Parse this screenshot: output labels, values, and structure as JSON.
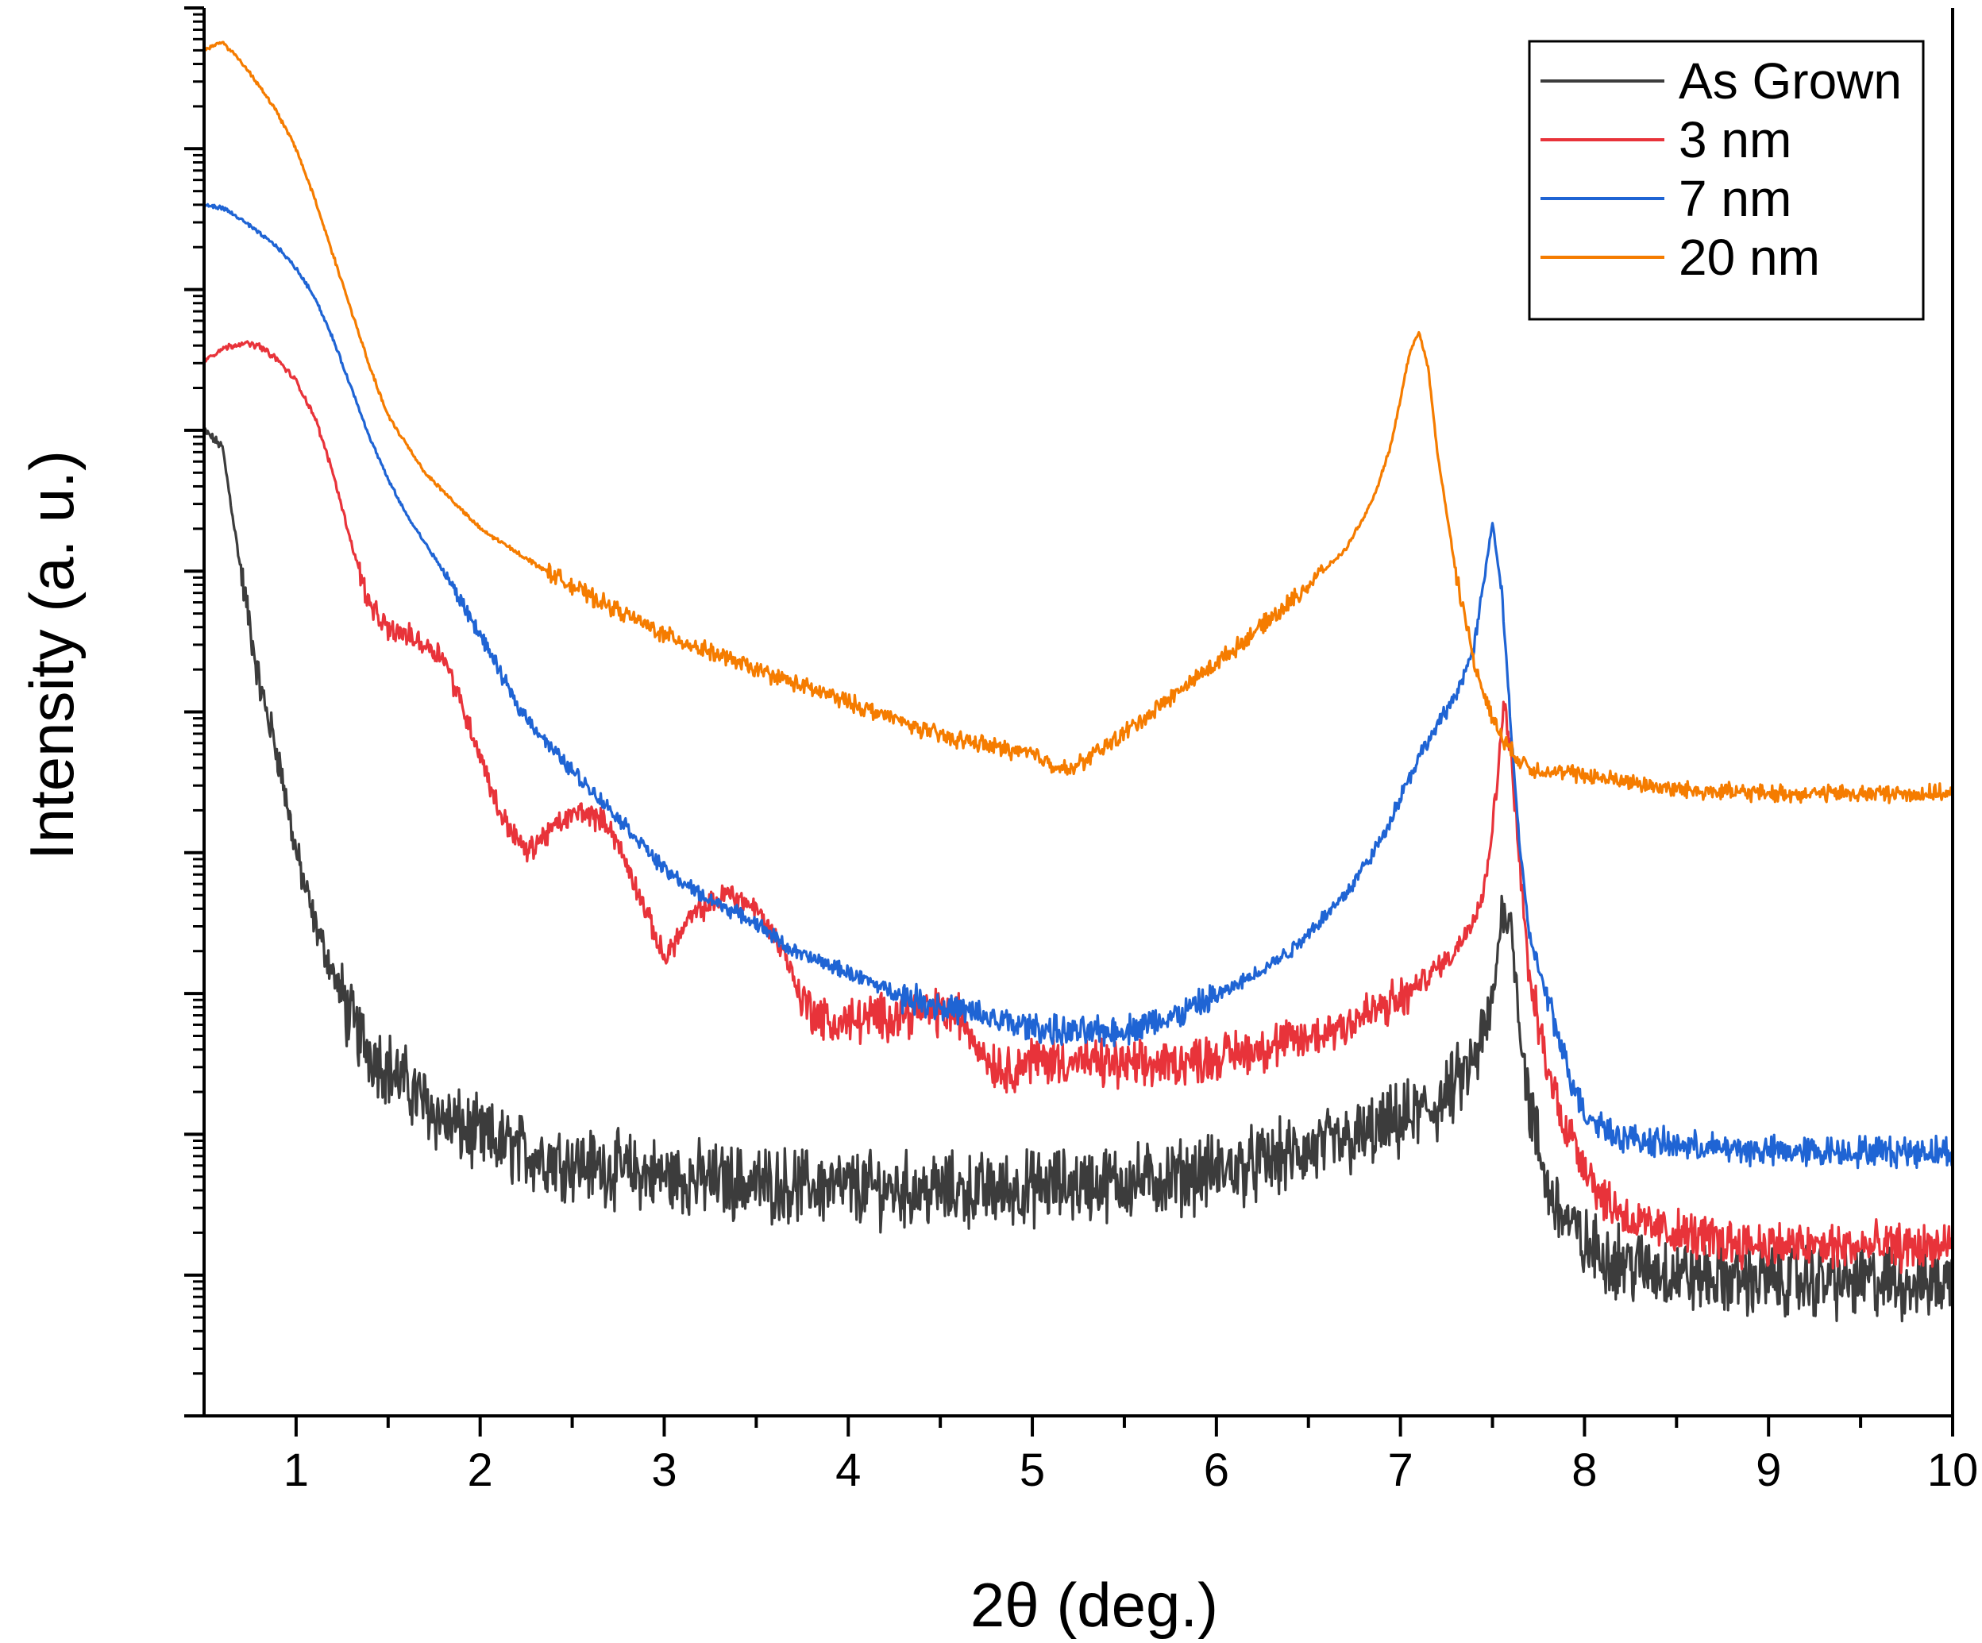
{
  "chart_data": {
    "type": "line",
    "xlabel": "2θ (deg.)",
    "ylabel": "Intensity (a. u.)",
    "xlim": [
      0.5,
      10
    ],
    "y_scale": "log",
    "y_tick_labels_shown": false,
    "x_ticks": [
      1,
      2,
      3,
      4,
      5,
      6,
      7,
      8,
      9,
      10
    ],
    "grid": false,
    "legend_position": "top-right",
    "series": [
      {
        "name": "As Grown",
        "color": "#3c3c3c",
        "noise": 0.35,
        "x": [
          0.5,
          0.6,
          0.7,
          0.8,
          0.9,
          1.0,
          1.1,
          1.2,
          1.3,
          1.4,
          1.6,
          1.8,
          2.0,
          2.3,
          2.6,
          3.0,
          3.5,
          4.0,
          4.5,
          4.8,
          5.2,
          5.7,
          6.2,
          6.8,
          7.2,
          7.4,
          7.5,
          7.55,
          7.6,
          7.65,
          7.7,
          7.8,
          7.9,
          8.0,
          8.3,
          8.7,
          9.2,
          9.6,
          10.0
        ],
        "y": [
          7.0,
          6.88,
          6.0,
          5.2,
          4.7,
          4.0,
          3.5,
          3.15,
          2.8,
          2.6,
          2.35,
          2.1,
          1.98,
          1.85,
          1.78,
          1.7,
          1.65,
          1.62,
          1.6,
          1.6,
          1.64,
          1.68,
          1.78,
          1.98,
          2.2,
          2.5,
          2.9,
          3.6,
          3.5,
          2.8,
          2.2,
          1.6,
          1.4,
          1.2,
          1.05,
          0.98,
          0.96,
          0.95,
          0.95
        ]
      },
      {
        "name": "3 nm",
        "color": "#e8333a",
        "noise": 0.22,
        "x": [
          0.5,
          0.6,
          0.7,
          0.8,
          0.9,
          1.0,
          1.1,
          1.2,
          1.3,
          1.4,
          1.5,
          1.6,
          1.8,
          1.9,
          2.0,
          2.1,
          2.25,
          2.4,
          2.55,
          2.7,
          2.85,
          3.0,
          3.15,
          3.35,
          3.5,
          3.65,
          3.75,
          3.9,
          4.1,
          4.4,
          4.6,
          4.75,
          4.85,
          5.0,
          5.2,
          5.6,
          6.0,
          6.5,
          7.0,
          7.3,
          7.45,
          7.52,
          7.56,
          7.6,
          7.65,
          7.7,
          7.8,
          7.9,
          8.0,
          8.1,
          8.3,
          8.7,
          9.2,
          10.0
        ],
        "y": [
          7.5,
          7.58,
          7.62,
          7.6,
          7.5,
          7.35,
          7.1,
          6.7,
          6.2,
          5.75,
          5.58,
          5.55,
          5.4,
          5.05,
          4.7,
          4.3,
          4.0,
          4.18,
          4.3,
          4.2,
          3.75,
          3.25,
          3.55,
          3.72,
          3.6,
          3.3,
          2.95,
          2.78,
          2.82,
          2.88,
          2.85,
          2.55,
          2.45,
          2.53,
          2.52,
          2.48,
          2.55,
          2.68,
          2.95,
          3.3,
          3.7,
          4.4,
          5.1,
          4.7,
          3.9,
          3.1,
          2.45,
          2.05,
          1.8,
          1.55,
          1.35,
          1.25,
          1.2,
          1.2
        ]
      },
      {
        "name": "7 nm",
        "color": "#1f64d4",
        "noise": 0.14,
        "x": [
          0.5,
          0.6,
          0.7,
          0.8,
          0.9,
          1.0,
          1.1,
          1.2,
          1.3,
          1.4,
          1.5,
          1.6,
          1.8,
          2.0,
          2.2,
          2.4,
          2.6,
          2.8,
          3.0,
          3.2,
          3.5,
          3.7,
          4.0,
          4.3,
          4.6,
          4.9,
          5.2,
          5.5,
          5.8,
          6.1,
          6.4,
          6.7,
          6.9,
          7.0,
          7.1,
          7.2,
          7.3,
          7.4,
          7.45,
          7.5,
          7.55,
          7.6,
          7.65,
          7.7,
          7.8,
          7.9,
          8.0,
          8.2,
          8.5,
          9.0,
          9.5,
          10.0
        ],
        "y": [
          8.6,
          8.58,
          8.5,
          8.4,
          8.3,
          8.15,
          7.95,
          7.65,
          7.3,
          6.95,
          6.65,
          6.4,
          6.0,
          5.55,
          5.05,
          4.72,
          4.45,
          4.18,
          3.88,
          3.7,
          3.5,
          3.3,
          3.15,
          2.98,
          2.88,
          2.78,
          2.72,
          2.74,
          2.85,
          3.05,
          3.3,
          3.7,
          4.1,
          4.4,
          4.68,
          4.9,
          5.12,
          5.45,
          5.9,
          6.35,
          5.85,
          4.9,
          4.0,
          3.42,
          2.95,
          2.5,
          2.15,
          1.98,
          1.92,
          1.88,
          1.88,
          1.88
        ]
      },
      {
        "name": "20 nm",
        "color": "#f57c00",
        "noise": 0.16,
        "x": [
          0.5,
          0.6,
          0.7,
          0.8,
          0.9,
          1.0,
          1.1,
          1.2,
          1.3,
          1.4,
          1.5,
          1.7,
          2.0,
          2.3,
          2.6,
          3.0,
          3.5,
          4.0,
          4.5,
          5.0,
          5.2,
          5.5,
          5.8,
          6.1,
          6.4,
          6.7,
          6.85,
          6.95,
          7.05,
          7.1,
          7.15,
          7.2,
          7.3,
          7.4,
          7.5,
          7.6,
          7.7,
          8.0,
          8.5,
          9.0,
          10.0
        ],
        "y": [
          9.7,
          9.76,
          9.62,
          9.45,
          9.25,
          9.0,
          8.65,
          8.25,
          7.85,
          7.45,
          7.1,
          6.7,
          6.3,
          6.05,
          5.82,
          5.55,
          5.3,
          5.07,
          4.83,
          4.7,
          4.58,
          4.85,
          5.15,
          5.45,
          5.78,
          6.15,
          6.5,
          6.9,
          7.55,
          7.7,
          7.45,
          6.85,
          6.0,
          5.35,
          4.95,
          4.72,
          4.6,
          4.55,
          4.45,
          4.42,
          4.42
        ]
      }
    ]
  }
}
